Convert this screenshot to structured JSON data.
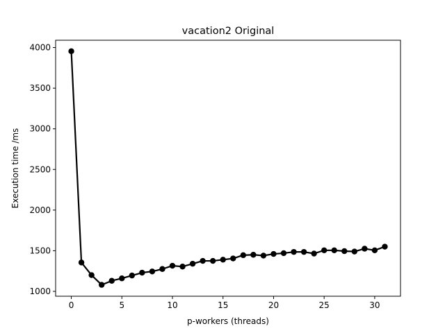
{
  "chart_data": {
    "type": "line",
    "title": "vacation2 Original",
    "xlabel": "p-workers (threads)",
    "ylabel": "Execution time /ms",
    "xlim": [
      -1.55,
      32.55
    ],
    "ylim": [
      940,
      4090
    ],
    "xticks": [
      0,
      5,
      10,
      15,
      20,
      25,
      30
    ],
    "yticks": [
      1000,
      1500,
      2000,
      2500,
      3000,
      3500,
      4000
    ],
    "grid": false,
    "series": [
      {
        "color": "#000000",
        "marker": "circle",
        "x": [
          0,
          1,
          2,
          3,
          4,
          5,
          6,
          7,
          8,
          9,
          10,
          11,
          12,
          13,
          14,
          15,
          16,
          17,
          18,
          19,
          20,
          21,
          22,
          23,
          24,
          25,
          26,
          27,
          28,
          29,
          30,
          31
        ],
        "y": [
          3955,
          1355,
          1200,
          1080,
          1130,
          1160,
          1195,
          1230,
          1245,
          1275,
          1315,
          1305,
          1340,
          1375,
          1375,
          1390,
          1405,
          1445,
          1450,
          1440,
          1460,
          1470,
          1485,
          1485,
          1465,
          1505,
          1505,
          1495,
          1490,
          1525,
          1505,
          1550
        ]
      }
    ]
  }
}
